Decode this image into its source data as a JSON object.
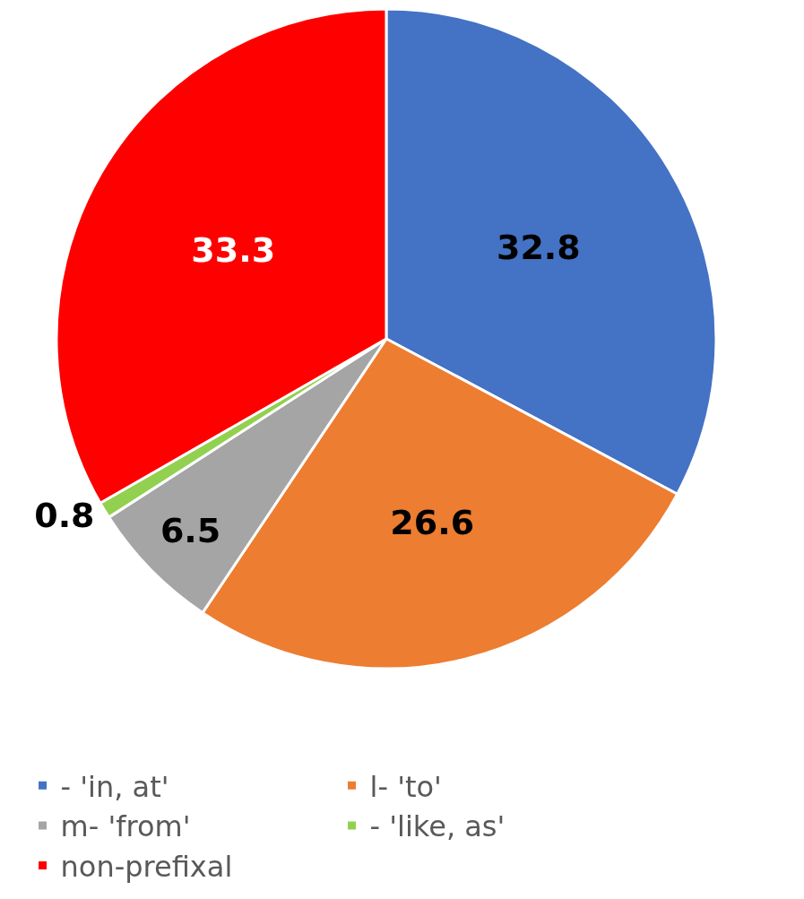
{
  "chart_data": {
    "type": "pie",
    "categories": [
      "- 'in, at'",
      "l- 'to'",
      "m- 'from'",
      "- 'like, as'",
      "non-prefixal"
    ],
    "values": [
      32.8,
      26.6,
      6.5,
      0.8,
      33.3
    ],
    "colors": [
      "#4472c4",
      "#ed7d31",
      "#a5a5a5",
      "#92d050",
      "#ff0000"
    ],
    "data_labels": true,
    "legend": "bottom"
  }
}
